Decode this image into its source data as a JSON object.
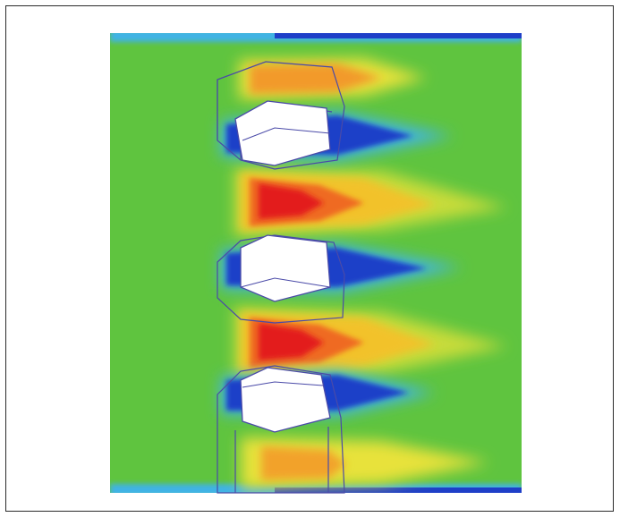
{
  "figure": {
    "description_kind": "cfd-contour-plot",
    "colors": {
      "background_field": "#5fc43f",
      "low": "#1e3fc8",
      "mid_low": "#3fb3e6",
      "neutral": "#5fc43f",
      "mid_high": "#e8e23a",
      "high": "#e31a1a",
      "obstacle_fill": "#ffffff",
      "outline": "#4a4aa8"
    },
    "obstacle_count": 3
  }
}
